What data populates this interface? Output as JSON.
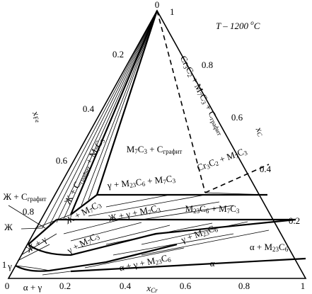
{
  "apex": {
    "top": "0",
    "side": "1"
  },
  "title": [
    "T – 1200 ",
    "o",
    "C"
  ],
  "left_axis": {
    "name": [
      "x",
      "Fe"
    ],
    "ticks": [
      "0.2",
      "0.4",
      "0.6",
      "0.8",
      "1"
    ]
  },
  "bottom_axis": {
    "name": [
      "x",
      "Cr"
    ],
    "ticks": [
      "0",
      "0.2",
      "0.4",
      "0.6",
      "0.8",
      "1"
    ]
  },
  "right_axis": {
    "name": [
      "x",
      "C"
    ],
    "ticks": [
      "0.8",
      "0.6",
      "0.4",
      "0.2"
    ]
  },
  "regions": [
    [
      "M",
      "7",
      "C",
      "3",
      " + C",
      "графит"
    ],
    [
      "Cr",
      "3",
      "C",
      "2",
      " + M",
      "7",
      "C",
      "3",
      " + C",
      "графит"
    ],
    [
      "Cr",
      "3",
      "C",
      "2",
      " + M",
      "7",
      "C",
      "3"
    ],
    [
      "γ + M",
      "23",
      "C",
      "6",
      " + M",
      "7",
      "C",
      "3"
    ],
    [
      "M",
      "23",
      "C",
      "6",
      " + M",
      "7",
      "C",
      "3"
    ],
    [
      "Ж + C",
      "графит",
      " + M",
      "7",
      "C",
      "3"
    ],
    [
      "Ж + C",
      "графит"
    ],
    [
      "Ж + M",
      "7",
      "C",
      "3"
    ],
    [
      "Ж + γ + M",
      "7",
      "C",
      "3"
    ],
    [
      "Ж"
    ],
    [
      "Ж + γ"
    ],
    [
      "γ + M",
      "7",
      "C",
      "3"
    ],
    [
      "γ + M",
      "23",
      "C",
      "6"
    ],
    [
      "α + γ + M",
      "23",
      "C",
      "6"
    ],
    [
      "α + M",
      "23",
      "C",
      "6"
    ],
    [
      "α"
    ],
    [
      "γ"
    ],
    [
      "α + γ"
    ]
  ]
}
